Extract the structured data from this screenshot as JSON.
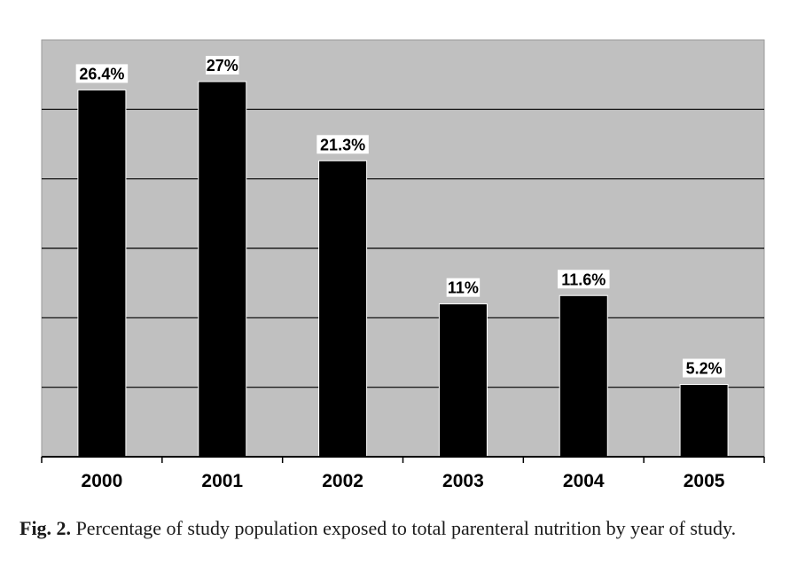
{
  "chart_data": {
    "type": "bar",
    "categories": [
      "2000",
      "2001",
      "2002",
      "2003",
      "2004",
      "2005"
    ],
    "values": [
      26.4,
      27,
      21.3,
      11,
      11.6,
      5.2
    ],
    "data_labels": [
      "26.4%",
      "27%",
      "21.3%",
      "11%",
      "11.6%",
      "5.2%"
    ],
    "ylim": [
      0,
      30
    ],
    "y_gridlines": [
      5,
      10,
      15,
      20,
      25
    ],
    "grid": true,
    "show_y_tick_labels": false,
    "colors": {
      "plot_background": "#c0c0c0",
      "bar": "#000000",
      "gridline": "#000000",
      "label_background": "#ffffff",
      "text": "#000000"
    }
  },
  "caption": {
    "label": "Fig. 2.",
    "text": " Percentage of study population exposed to total parenteral nutrition by year of study."
  }
}
